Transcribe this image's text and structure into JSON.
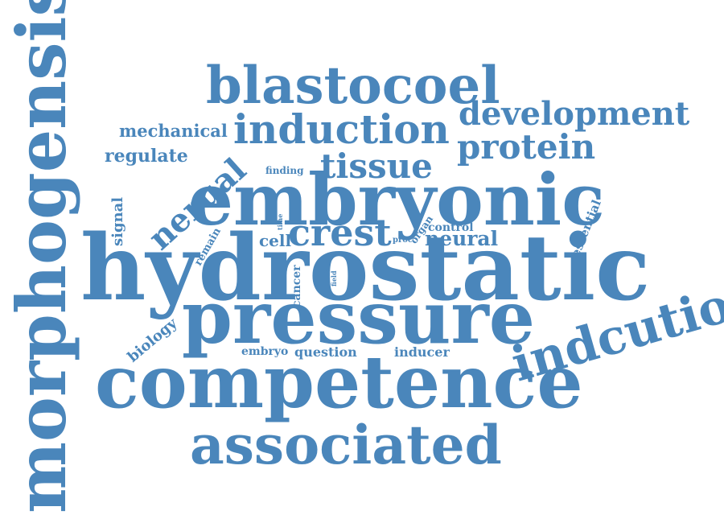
{
  "color": "#4a86bb",
  "words": {
    "morphogensis": "morphogensis",
    "blastocoel": "blastocoel",
    "development": "development",
    "mechanical": "mechanical",
    "induction": "induction",
    "protein": "protein",
    "regulate": "regulate",
    "nerual": "nerual",
    "finding": "finding",
    "tissue": "tissue",
    "embryonic": "embryonic",
    "signal": "signal",
    "time": "time",
    "organ": "organ",
    "control": "control",
    "essential": "essential",
    "remain": "remain",
    "cell": "cell",
    "crest": "crest",
    "proc": "proc",
    "neural": "neural",
    "hydrostatic": "hydrostatic",
    "fate": "fate",
    "field": "field",
    "cancer": "cancer",
    "pressure": "pressure",
    "indcution": "indcution",
    "biology": "biology",
    "embryo": "embryo",
    "question": "question",
    "inducer": "inducer",
    "competence": "competence",
    "associated": "associated"
  }
}
